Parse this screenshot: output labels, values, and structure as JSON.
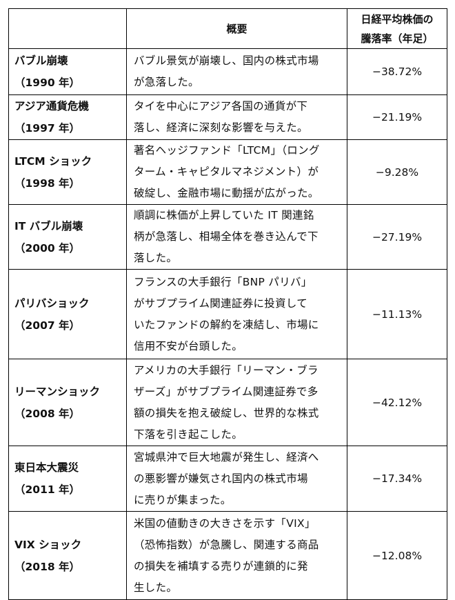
{
  "table": {
    "header": {
      "col1": null,
      "col2": "概要",
      "col3": [
        "日経平均株価の",
        "騰落率（年足）"
      ]
    },
    "rows": [
      {
        "name": "バブル崩壊",
        "year": "（1990 年）",
        "description": [
          "バブル景気が崩壊し、国内の株式市場",
          "が急落した。"
        ],
        "change": "−38.72%"
      },
      {
        "name": "アジア通貨危機",
        "year": "（1997 年）",
        "description": [
          "タイを中心にアジア各国の通貨が下",
          "落し、経済に深刻な影響を与えた。"
        ],
        "change": "−21.19%"
      },
      {
        "name": "LTCM ショック",
        "year": "（1998 年）",
        "description": [
          "著名ヘッジファンド「LTCM」（ロング",
          "ターム・キャピタルマネジメント）が",
          "破綻し、金融市場に動揺が広がった。"
        ],
        "change": "−9.28%"
      },
      {
        "name": "IT バブル崩壊",
        "year": "（2000 年）",
        "description": [
          "順調に株価が上昇していた IT 関連銘",
          "柄が急落し、相場全体を巻き込んで下",
          "落した。"
        ],
        "change": "−27.19%"
      },
      {
        "name": "パリバショック",
        "year": "（2007 年）",
        "description": [
          "フランスの大手銀行「BNP パリバ」",
          "がサブプライム関連証券に投資して",
          "いたファンドの解約を凍結し、市場に",
          "信用不安が台頭した。"
        ],
        "change": "−11.13%"
      },
      {
        "name": "リーマンショック",
        "year": "（2008 年）",
        "description": [
          "アメリカの大手銀行「リーマン・ブラ",
          "ザーズ」がサブプライム関連証券で多",
          "額の損失を抱え破綻し、世界的な株式",
          "下落を引き起こした。"
        ],
        "change": "−42.12%"
      },
      {
        "name": "東日本大震災",
        "year": "（2011 年）",
        "description": [
          "宮城県沖で巨大地震が発生し、経済へ",
          "の悪影響が嫌気され国内の株式市場",
          "に売りが集まった。"
        ],
        "change": "−17.34%"
      },
      {
        "name": "VIX ショック",
        "year": "（2018 年）",
        "description": [
          "米国の値動きの大きさを示す「VIX」",
          "（恐怖指数）が急騰し、関連する商品",
          "の損失を補填する売りが連鎖的に発",
          "生した。"
        ],
        "change": "−12.08%"
      }
    ]
  }
}
